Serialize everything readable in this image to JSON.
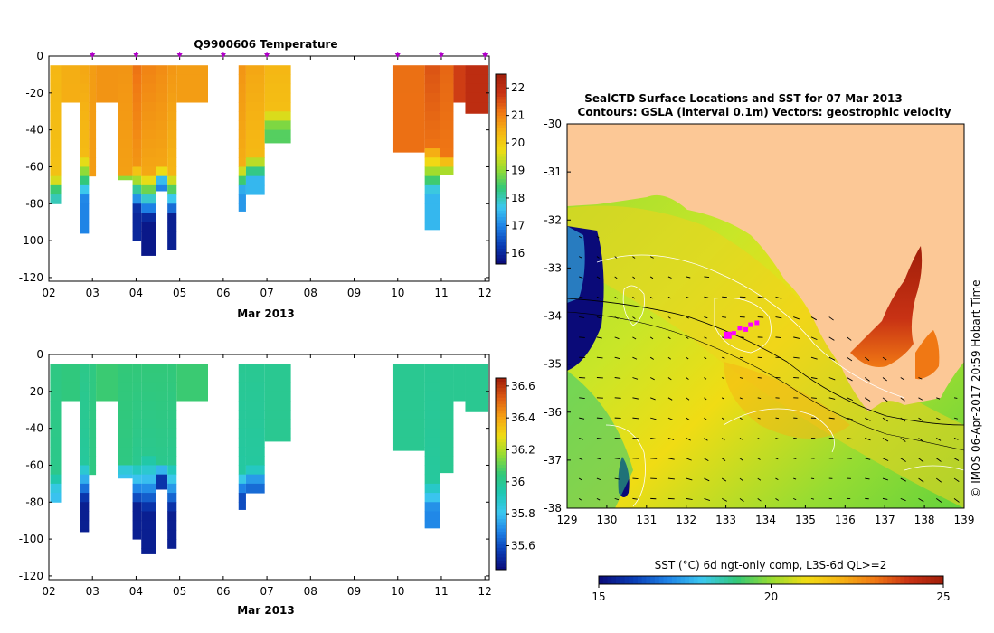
{
  "colors": {
    "land": "#fcc896",
    "purple": "#b000c8",
    "magenta": "#ff00ff",
    "temp_ramp": [
      "#0a0a78",
      "#0a3cb4",
      "#1e82e6",
      "#3cc8f0",
      "#32c878",
      "#96dc32",
      "#f0dc14",
      "#f5b414",
      "#f07814",
      "#c83214",
      "#a01e0a"
    ],
    "sal_ramp": [
      "#0a0a78",
      "#0a3cb4",
      "#1e82e6",
      "#3cc8f0",
      "#1ec8b4",
      "#32c878",
      "#96dc32",
      "#f0dc14",
      "#f5a014",
      "#dc5a14",
      "#a01e0a"
    ],
    "sst_ramp": [
      "#0a0a78",
      "#0a3cb4",
      "#1e82e6",
      "#3cc8f0",
      "#32c878",
      "#96dc32",
      "#f0dc14",
      "#f5b414",
      "#f07814",
      "#c83214",
      "#a01e0a"
    ]
  },
  "chart_data": [
    {
      "type": "heatmap",
      "title": "Q9900606  Temperature",
      "xlabel": "Mar 2013",
      "ylabel": "",
      "xlim": [
        2,
        12.1
      ],
      "ylim": [
        -122,
        0
      ],
      "xticks": [
        2,
        3,
        4,
        5,
        6,
        7,
        8,
        9,
        10,
        11,
        12
      ],
      "xtick_labels": [
        "02",
        "03",
        "04",
        "05",
        "06",
        "07",
        "08",
        "09",
        "10",
        "11",
        "12"
      ],
      "yticks": [
        0,
        -20,
        -40,
        -60,
        -80,
        -100,
        -120
      ],
      "colorbar": {
        "min": 15.6,
        "max": 22.5,
        "ticks": [
          16,
          17,
          18,
          19,
          20,
          21,
          22
        ]
      },
      "dive_markers": [
        3.0,
        4.0,
        5.0,
        6.0,
        7.0,
        10.0,
        11.0,
        12.0
      ],
      "profiles": [
        {
          "x0": 2.03,
          "x1": 2.28,
          "maxdepth": 80,
          "surf": 20.4,
          "thermo": 62,
          "deep": 18.0
        },
        {
          "x0": 2.28,
          "x1": 2.72,
          "maxdepth": 25,
          "surf": 20.5,
          "thermo": 200,
          "deep": 20.3
        },
        {
          "x0": 2.72,
          "x1": 2.92,
          "maxdepth": 96,
          "surf": 20.6,
          "thermo": 50,
          "deep": 17.0
        },
        {
          "x0": 2.92,
          "x1": 3.08,
          "maxdepth": 65,
          "surf": 20.7,
          "thermo": 200,
          "deep": 20.3
        },
        {
          "x0": 3.08,
          "x1": 3.58,
          "maxdepth": 25,
          "surf": 20.8,
          "thermo": 200,
          "deep": 20.6
        },
        {
          "x0": 3.58,
          "x1": 3.92,
          "maxdepth": 67,
          "surf": 20.8,
          "thermo": 60,
          "deep": 19.0
        },
        {
          "x0": 3.92,
          "x1": 4.12,
          "maxdepth": 100,
          "surf": 21.2,
          "thermo": 57,
          "deep": 16.0
        },
        {
          "x0": 4.12,
          "x1": 4.45,
          "maxdepth": 108,
          "surf": 21.0,
          "thermo": 60,
          "deep": 15.8
        },
        {
          "x0": 4.45,
          "x1": 4.72,
          "maxdepth": 73,
          "surf": 20.9,
          "thermo": 58,
          "deep": 17.0
        },
        {
          "x0": 4.72,
          "x1": 4.93,
          "maxdepth": 105,
          "surf": 20.8,
          "thermo": 60,
          "deep": 15.9
        },
        {
          "x0": 4.93,
          "x1": 5.65,
          "maxdepth": 25,
          "surf": 20.7,
          "thermo": 200,
          "deep": 20.5
        },
        {
          "x0": 6.35,
          "x1": 6.52,
          "maxdepth": 84,
          "surf": 20.8,
          "thermo": 55,
          "deep": 17.2
        },
        {
          "x0": 6.52,
          "x1": 6.95,
          "maxdepth": 75,
          "surf": 20.6,
          "thermo": 50,
          "deep": 17.5
        },
        {
          "x0": 6.95,
          "x1": 7.55,
          "maxdepth": 47,
          "surf": 20.4,
          "thermo": 25,
          "deep": 18.6
        },
        {
          "x0": 9.88,
          "x1": 10.62,
          "maxdepth": 52,
          "surf": 21.2,
          "thermo": 200,
          "deep": 20.9
        },
        {
          "x0": 10.62,
          "x1": 10.98,
          "maxdepth": 94,
          "surf": 21.5,
          "thermo": 45,
          "deep": 17.5
        },
        {
          "x0": 10.98,
          "x1": 11.28,
          "maxdepth": 64,
          "surf": 21.3,
          "thermo": 52,
          "deep": 19.2
        },
        {
          "x0": 11.28,
          "x1": 11.55,
          "maxdepth": 25,
          "surf": 21.7,
          "thermo": 200,
          "deep": 21.5
        },
        {
          "x0": 11.55,
          "x1": 12.08,
          "maxdepth": 31,
          "surf": 22.0,
          "thermo": 200,
          "deep": 21.6
        }
      ]
    },
    {
      "type": "heatmap",
      "title": "",
      "xlabel": "Mar 2013",
      "ylabel": "",
      "xlim": [
        2,
        12.1
      ],
      "ylim": [
        -122,
        0
      ],
      "xticks": [
        2,
        3,
        4,
        5,
        6,
        7,
        8,
        9,
        10,
        11,
        12
      ],
      "xtick_labels": [
        "02",
        "03",
        "04",
        "05",
        "06",
        "07",
        "08",
        "09",
        "10",
        "11",
        "12"
      ],
      "yticks": [
        0,
        -20,
        -40,
        -60,
        -80,
        -100,
        -120
      ],
      "colorbar": {
        "min": 35.45,
        "max": 36.65,
        "ticks": [
          35.6,
          35.8,
          36,
          36.2,
          36.4,
          36.6
        ],
        "tick_labels": [
          "35.6",
          "35.8",
          "36",
          "36.2",
          "36.4",
          "36.6"
        ]
      },
      "profiles": [
        {
          "x0": 2.03,
          "x1": 2.28,
          "maxdepth": 80,
          "surf": 36.03,
          "thermo": 62,
          "deep": 35.8
        },
        {
          "x0": 2.28,
          "x1": 2.72,
          "maxdepth": 25,
          "surf": 36.04,
          "thermo": 200,
          "deep": 36.02
        },
        {
          "x0": 2.72,
          "x1": 2.92,
          "maxdepth": 96,
          "surf": 36.02,
          "thermo": 55,
          "deep": 35.5
        },
        {
          "x0": 2.92,
          "x1": 3.08,
          "maxdepth": 65,
          "surf": 36.03,
          "thermo": 200,
          "deep": 36.0
        },
        {
          "x0": 3.08,
          "x1": 3.58,
          "maxdepth": 25,
          "surf": 36.06,
          "thermo": 200,
          "deep": 36.05
        },
        {
          "x0": 3.58,
          "x1": 3.92,
          "maxdepth": 67,
          "surf": 36.05,
          "thermo": 55,
          "deep": 35.8
        },
        {
          "x0": 3.92,
          "x1": 4.12,
          "maxdepth": 100,
          "surf": 36.05,
          "thermo": 55,
          "deep": 35.5
        },
        {
          "x0": 4.12,
          "x1": 4.45,
          "maxdepth": 108,
          "surf": 36.05,
          "thermo": 52,
          "deep": 35.5
        },
        {
          "x0": 4.45,
          "x1": 4.72,
          "maxdepth": 73,
          "surf": 36.05,
          "thermo": 55,
          "deep": 35.55
        },
        {
          "x0": 4.72,
          "x1": 4.93,
          "maxdepth": 105,
          "surf": 36.05,
          "thermo": 55,
          "deep": 35.5
        },
        {
          "x0": 4.93,
          "x1": 5.65,
          "maxdepth": 25,
          "surf": 36.06,
          "thermo": 200,
          "deep": 36.05
        },
        {
          "x0": 6.35,
          "x1": 6.52,
          "maxdepth": 84,
          "surf": 36.0,
          "thermo": 60,
          "deep": 35.6
        },
        {
          "x0": 6.52,
          "x1": 6.95,
          "maxdepth": 75,
          "surf": 36.0,
          "thermo": 58,
          "deep": 35.65
        },
        {
          "x0": 6.95,
          "x1": 7.55,
          "maxdepth": 47,
          "surf": 36.0,
          "thermo": 200,
          "deep": 35.98
        },
        {
          "x0": 9.88,
          "x1": 10.62,
          "maxdepth": 52,
          "surf": 36.0,
          "thermo": 200,
          "deep": 35.98
        },
        {
          "x0": 10.62,
          "x1": 10.98,
          "maxdepth": 94,
          "surf": 36.0,
          "thermo": 65,
          "deep": 35.7
        },
        {
          "x0": 10.98,
          "x1": 11.28,
          "maxdepth": 64,
          "surf": 36.0,
          "thermo": 200,
          "deep": 35.98
        },
        {
          "x0": 11.28,
          "x1": 11.55,
          "maxdepth": 25,
          "surf": 36.0,
          "thermo": 200,
          "deep": 36.0
        },
        {
          "x0": 11.55,
          "x1": 12.08,
          "maxdepth": 31,
          "surf": 36.0,
          "thermo": 200,
          "deep": 35.98
        }
      ]
    },
    {
      "type": "heatmap",
      "title": "SealCTD Surface Locations and SST for 07 Mar 2013",
      "subtitle": "Contours: GSLA (interval 0.1m) Vectors: geostrophic velocity",
      "xlabel": "",
      "ylabel": "",
      "xlim": [
        129,
        139
      ],
      "ylim": [
        -38,
        -30
      ],
      "xticks": [
        129,
        130,
        131,
        132,
        133,
        134,
        135,
        136,
        137,
        138,
        139
      ],
      "yticks": [
        -30,
        -31,
        -32,
        -33,
        -34,
        -35,
        -36,
        -37,
        -38
      ],
      "colorbar_label": "SST (°C) 6d ngt-only comp, L3S-6d QL>=2",
      "colorbar": {
        "min": 15,
        "max": 25,
        "ticks": [
          15,
          20,
          25
        ]
      },
      "side_label": "© IMOS 06-Apr-2017 20:59 Hobart Time",
      "seal_locations": [
        {
          "lon": 133.05,
          "lat": -34.4
        },
        {
          "lon": 133.2,
          "lat": -34.36
        },
        {
          "lon": 133.35,
          "lat": -34.25
        },
        {
          "lon": 133.5,
          "lat": -34.28
        },
        {
          "lon": 133.62,
          "lat": -34.18
        },
        {
          "lon": 133.78,
          "lat": -34.14
        }
      ]
    }
  ]
}
